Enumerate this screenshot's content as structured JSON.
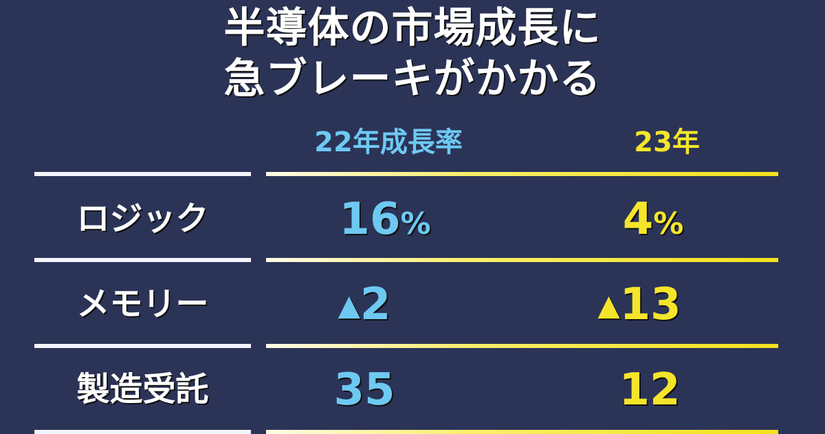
{
  "title": {
    "line1": "半導体の市場成長に",
    "line2": "急ブレーキがかかる"
  },
  "colors": {
    "background": "#2b3457",
    "col_2022": "#6ec9f2",
    "col_2023": "#f5e52a"
  },
  "chart_data": {
    "type": "table",
    "columns": [
      "22年成長率",
      "23年"
    ],
    "unit": "%",
    "negative_marker": "▲",
    "rows": [
      {
        "label": "ロジック",
        "v2022": 16,
        "v2023": 4,
        "d2022": "16",
        "d2023": "4",
        "s2022": "%",
        "s2023": "%",
        "m2022": "",
        "m2023": ""
      },
      {
        "label": "メモリー",
        "v2022": -2,
        "v2023": -13,
        "d2022": "2",
        "d2023": "13",
        "s2022": "",
        "s2023": "",
        "m2022": "▲",
        "m2023": "▲"
      },
      {
        "label": "製造受託",
        "v2022": 35,
        "v2023": 12,
        "d2022": "35",
        "d2023": "12",
        "s2022": "",
        "s2023": "",
        "m2022": "",
        "m2023": ""
      }
    ]
  }
}
